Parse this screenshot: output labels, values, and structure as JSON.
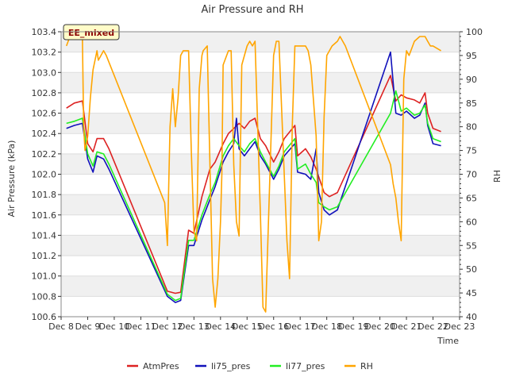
{
  "chart_data": {
    "type": "line",
    "title": "Air Pressure and RH",
    "badge": "EE_mixed",
    "xlabel": "Time",
    "ylabel_left": "Air Pressure (kPa)",
    "ylabel_right": "RH",
    "xlim": [
      8,
      23
    ],
    "ylim_left": [
      100.6,
      103.4
    ],
    "ylim_right": [
      40,
      100
    ],
    "x_ticks": [
      8,
      9,
      10,
      11,
      12,
      13,
      14,
      15,
      16,
      17,
      18,
      19,
      20,
      21,
      22,
      23
    ],
    "x_tick_labels": [
      "Dec 8",
      "Dec 9",
      "Dec 10",
      "Dec 11",
      "Dec 12",
      "Dec 13",
      "Dec 14",
      "Dec 15",
      "Dec 16",
      "Dec 17",
      "Dec 18",
      "Dec 19",
      "Dec 20",
      "Dec 21",
      "Dec 22",
      "Dec 23"
    ],
    "y_left_ticks": [
      100.6,
      100.8,
      101.0,
      101.2,
      101.4,
      101.6,
      101.8,
      102.0,
      102.2,
      102.4,
      102.6,
      102.8,
      103.0,
      103.2,
      103.4
    ],
    "y_left_tick_labels": [
      "100.6",
      "100.8",
      "101.0",
      "101.2",
      "101.4",
      "101.6",
      "101.8",
      "102.0",
      "102.2",
      "102.4",
      "102.6",
      "102.8",
      "103.0",
      "103.2",
      "103.4"
    ],
    "y_right_ticks": [
      40,
      45,
      50,
      55,
      60,
      65,
      70,
      75,
      80,
      85,
      90,
      95,
      100
    ],
    "y_right_tick_labels": [
      "40",
      "45",
      "50",
      "55",
      "60",
      "65",
      "70",
      "75",
      "80",
      "85",
      "90",
      "95",
      "100"
    ],
    "grid": "horizontal bands",
    "legend_position": "bottom",
    "series": [
      {
        "name": "AtmPres",
        "axis": "left",
        "color": "#dd2222",
        "x": [
          8.2,
          8.5,
          8.8,
          9.0,
          9.2,
          9.35,
          9.6,
          9.8,
          12.0,
          12.3,
          12.5,
          12.8,
          13.0,
          13.3,
          13.6,
          13.8,
          14.1,
          14.3,
          14.7,
          14.9,
          15.1,
          15.3,
          15.5,
          15.7,
          16.0,
          16.2,
          16.4,
          16.8,
          16.9,
          17.2,
          17.4,
          17.6,
          17.9,
          18.1,
          18.4,
          20.4,
          20.6,
          20.8,
          21.0,
          21.3,
          21.5,
          21.7,
          21.8,
          22.0,
          22.3
        ],
        "y": [
          102.65,
          102.7,
          102.72,
          102.3,
          102.22,
          102.35,
          102.35,
          102.25,
          100.85,
          100.83,
          100.84,
          101.45,
          101.42,
          101.78,
          102.05,
          102.12,
          102.3,
          102.4,
          102.5,
          102.45,
          102.52,
          102.55,
          102.35,
          102.28,
          102.12,
          102.22,
          102.35,
          102.48,
          102.18,
          102.25,
          102.17,
          102.05,
          101.82,
          101.78,
          101.82,
          102.97,
          102.72,
          102.78,
          102.75,
          102.73,
          102.7,
          102.8,
          102.6,
          102.45,
          102.42
        ]
      },
      {
        "name": "li75_pres",
        "axis": "left",
        "color": "#1111bb",
        "x": [
          8.2,
          8.5,
          8.8,
          9.0,
          9.2,
          9.35,
          9.6,
          9.8,
          12.0,
          12.3,
          12.5,
          12.8,
          13.0,
          13.3,
          13.6,
          13.8,
          14.1,
          14.3,
          14.5,
          14.6,
          14.7,
          14.9,
          15.1,
          15.3,
          15.5,
          15.7,
          16.0,
          16.2,
          16.4,
          16.8,
          16.9,
          17.2,
          17.4,
          17.6,
          17.7,
          17.9,
          18.1,
          18.4,
          20.4,
          20.6,
          20.8,
          21.0,
          21.3,
          21.5,
          21.7,
          21.8,
          22.0,
          22.3
        ],
        "y": [
          102.45,
          102.48,
          102.5,
          102.15,
          102.02,
          102.18,
          102.15,
          102.05,
          100.8,
          100.74,
          100.76,
          101.3,
          101.3,
          101.55,
          101.75,
          101.88,
          102.12,
          102.22,
          102.3,
          102.55,
          102.25,
          102.18,
          102.25,
          102.32,
          102.18,
          102.1,
          101.95,
          102.05,
          102.18,
          102.3,
          102.02,
          102.0,
          101.95,
          102.25,
          101.82,
          101.65,
          101.6,
          101.65,
          103.2,
          102.6,
          102.58,
          102.62,
          102.55,
          102.58,
          102.7,
          102.48,
          102.3,
          102.28
        ]
      },
      {
        "name": "li77_pres",
        "axis": "left",
        "color": "#22ee22",
        "x": [
          8.2,
          8.5,
          8.8,
          9.0,
          9.2,
          9.35,
          9.6,
          9.8,
          12.0,
          12.3,
          12.5,
          12.8,
          13.0,
          13.3,
          13.6,
          13.8,
          14.1,
          14.3,
          14.5,
          14.7,
          14.9,
          15.1,
          15.3,
          15.5,
          15.7,
          16.0,
          16.2,
          16.4,
          16.8,
          16.9,
          17.2,
          17.4,
          17.6,
          17.7,
          17.9,
          18.1,
          18.4,
          20.4,
          20.6,
          20.8,
          21.0,
          21.3,
          21.5,
          21.7,
          21.8,
          22.0,
          22.3
        ],
        "y": [
          102.5,
          102.52,
          102.55,
          102.2,
          102.08,
          102.22,
          102.2,
          102.1,
          100.82,
          100.76,
          100.78,
          101.35,
          101.35,
          101.6,
          101.8,
          101.92,
          102.18,
          102.28,
          102.35,
          102.28,
          102.22,
          102.3,
          102.35,
          102.22,
          102.12,
          101.98,
          102.08,
          102.22,
          102.35,
          102.05,
          102.1,
          102.0,
          101.92,
          101.72,
          101.68,
          101.65,
          101.68,
          102.6,
          102.82,
          102.62,
          102.65,
          102.58,
          102.6,
          102.68,
          102.5,
          102.35,
          102.32
        ]
      },
      {
        "name": "RH",
        "axis": "right",
        "color": "#ffa500",
        "x": [
          8.2,
          8.3,
          8.5,
          8.8,
          8.85,
          8.9,
          9.0,
          9.1,
          9.2,
          9.35,
          9.4,
          9.6,
          9.7,
          11.9,
          12.0,
          12.1,
          12.2,
          12.3,
          12.4,
          12.5,
          12.6,
          12.7,
          12.8,
          12.9,
          13.0,
          13.1,
          13.2,
          13.3,
          13.35,
          13.5,
          13.55,
          13.7,
          13.8,
          13.9,
          14.0,
          14.05,
          14.1,
          14.3,
          14.4,
          14.5,
          14.6,
          14.7,
          14.8,
          15.0,
          15.1,
          15.2,
          15.3,
          15.5,
          15.6,
          15.7,
          16.0,
          16.1,
          16.2,
          16.4,
          16.5,
          16.6,
          16.7,
          16.8,
          16.9,
          17.0,
          17.1,
          17.2,
          17.3,
          17.4,
          17.6,
          17.7,
          17.8,
          17.9,
          18.0,
          18.2,
          18.4,
          18.5,
          18.7,
          20.4,
          20.5,
          20.6,
          20.7,
          20.8,
          20.9,
          21.0,
          21.1,
          21.3,
          21.5,
          21.7,
          21.8,
          21.9,
          22.0,
          22.3
        ],
        "y": [
          97,
          98.5,
          99,
          99,
          80,
          75,
          78,
          86,
          92,
          96,
          94,
          96,
          95,
          64,
          55,
          80,
          88,
          80,
          86,
          95,
          96,
          96,
          96,
          75,
          58,
          56,
          88,
          95,
          96,
          97,
          85,
          48,
          42,
          48,
          60,
          70,
          93,
          96,
          96,
          72,
          60,
          57,
          93,
          97,
          98,
          97,
          98,
          62,
          42,
          41,
          95,
          98,
          98,
          70,
          56,
          48,
          80,
          97,
          97,
          97,
          97,
          97,
          96,
          93,
          78,
          56,
          60,
          82,
          95,
          97,
          98,
          99,
          97,
          72,
          68,
          65,
          60,
          56,
          90,
          96,
          95,
          98,
          99,
          99,
          98,
          97,
          97,
          96
        ]
      }
    ]
  }
}
